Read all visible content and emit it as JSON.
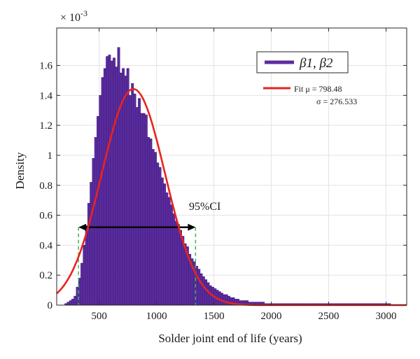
{
  "chart_data": {
    "type": "bar",
    "title": "",
    "xlabel": "Solder joint end of life (years)",
    "ylabel": "Density",
    "y_multiplier": "× 10",
    "y_multiplier_exp": "-3",
    "xlim": [
      130,
      3180
    ],
    "ylim": [
      0,
      0.00185
    ],
    "xticks": [
      500,
      1000,
      1500,
      2000,
      2500,
      3000
    ],
    "xtick_labels": [
      "500",
      "1000",
      "1500",
      "2000",
      "2500",
      "3000"
    ],
    "yticks": [
      0,
      0.0002,
      0.0004,
      0.0006,
      0.0008,
      0.001,
      0.0012,
      0.0014,
      0.0016
    ],
    "ytick_labels": [
      "0",
      "0.2",
      "0.4",
      "0.6",
      "0.8",
      "1",
      "1.2",
      "1.4",
      "1.6"
    ],
    "grid": true,
    "legend_position": "top-right",
    "bin_width": 20,
    "bin_start": 200,
    "histogram": {
      "name": "β1, β2",
      "color": "#5b2c9e",
      "edge_color": "#3d1a7a",
      "densities": [
        1e-05,
        2e-05,
        3e-05,
        4e-05,
        6e-05,
        0.00012,
        0.00018,
        0.00028,
        0.0004,
        0.00053,
        0.00068,
        0.00082,
        0.00098,
        0.00112,
        0.00126,
        0.0014,
        0.00152,
        0.00158,
        0.00166,
        0.00167,
        0.00163,
        0.00165,
        0.00159,
        0.00172,
        0.00155,
        0.00158,
        0.00153,
        0.00158,
        0.0014,
        0.00148,
        0.00141,
        0.00132,
        0.00138,
        0.00128,
        0.00128,
        0.00127,
        0.00112,
        0.00111,
        0.00104,
        0.00102,
        0.00095,
        0.00092,
        0.00085,
        0.00081,
        0.00075,
        0.00072,
        0.00067,
        0.00061,
        0.00056,
        0.00054,
        0.0005,
        0.00046,
        0.00041,
        0.00039,
        0.00034,
        0.00031,
        0.00029,
        0.00026,
        0.00024,
        0.00021,
        0.00019,
        0.00017,
        0.00015,
        0.00013,
        0.00012,
        0.00011,
        0.0001,
        9e-05,
        8e-05,
        7e-05,
        7e-05,
        6e-05,
        5e-05,
        5e-05,
        4e-05,
        4e-05,
        3e-05,
        3e-05,
        3e-05,
        3e-05,
        2e-05,
        2e-05,
        2e-05,
        2e-05,
        2e-05,
        2e-05,
        2e-05,
        1e-05,
        1e-05,
        1e-05,
        1e-05,
        1e-05,
        1e-05,
        1e-05,
        1e-05,
        1e-05,
        1e-05,
        1e-05,
        1e-05,
        1e-05,
        1e-05,
        1e-05,
        1e-05,
        1e-05,
        1e-05,
        1e-05,
        1e-05,
        1e-05,
        1e-05,
        1e-05,
        1e-05,
        1e-05,
        1e-05,
        1e-05,
        1e-05,
        1e-05,
        1e-05,
        1e-05,
        1e-05,
        1e-05,
        1e-05,
        1e-05,
        1e-05,
        1e-05,
        1e-05,
        1e-05,
        1e-05,
        1e-05,
        1e-05,
        1e-05,
        1e-05,
        1e-05,
        1e-05,
        1e-05,
        1e-05,
        1e-05,
        1e-05,
        1e-05,
        1e-05,
        1e-05,
        1e-05,
        1e-05
      ]
    },
    "fit": {
      "label": "Fit μ = 798.48",
      "sigma_label": "σ = 276.533",
      "mu": 798.48,
      "sigma": 276.533,
      "color": "#e8231e"
    },
    "ci": {
      "label": "95%CI",
      "lower": 320,
      "upper": 1340,
      "arrow_y": 0.00052,
      "line_color": "#39b54a",
      "arrow_color": "#000000"
    }
  }
}
